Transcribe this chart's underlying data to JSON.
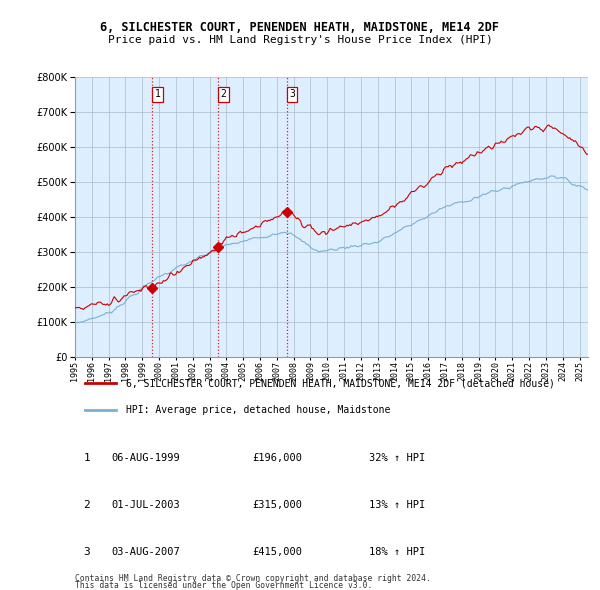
{
  "title_line1": "6, SILCHESTER COURT, PENENDEN HEATH, MAIDSTONE, ME14 2DF",
  "title_line2": "Price paid vs. HM Land Registry's House Price Index (HPI)",
  "sale_dates_float": [
    1999.583,
    2003.5,
    2007.583
  ],
  "sale_prices": [
    196000,
    315000,
    415000
  ],
  "sale_labels": [
    "1",
    "2",
    "3"
  ],
  "sale_hpi_pct": [
    "32% ↑ HPI",
    "13% ↑ HPI",
    "18% ↑ HPI"
  ],
  "sale_dates_str": [
    "06-AUG-1999",
    "01-JUL-2003",
    "03-AUG-2007"
  ],
  "sale_prices_str": [
    "£196,000",
    "£315,000",
    "£415,000"
  ],
  "legend_red": "6, SILCHESTER COURT, PENENDEN HEATH, MAIDSTONE, ME14 2DF (detached house)",
  "legend_blue": "HPI: Average price, detached house, Maidstone",
  "footer": "Contains HM Land Registry data © Crown copyright and database right 2024.\nThis data is licensed under the Open Government Licence v3.0.",
  "red_color": "#cc0000",
  "blue_color": "#7ab0d4",
  "shade_color": "#ddeeff",
  "dashed_color": "#cc0000",
  "ylim": [
    0,
    800000
  ],
  "yticks": [
    0,
    100000,
    200000,
    300000,
    400000,
    500000,
    600000,
    700000,
    800000
  ],
  "xmin": 1995,
  "xmax": 2025.5,
  "background_color": "#ffffff",
  "grid_color": "#ccddee"
}
